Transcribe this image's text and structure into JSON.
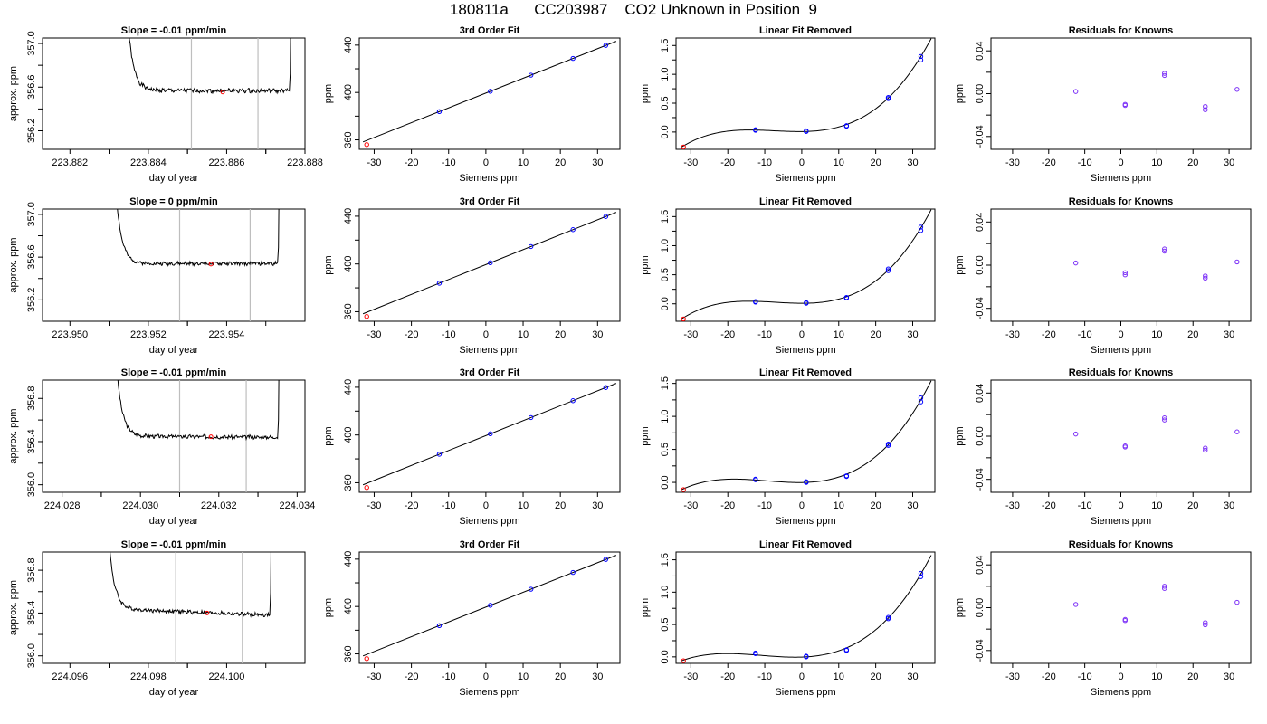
{
  "title": "180811a      CC203987    CO2 Unknown in Position  9",
  "colors": {
    "known": "#0000ff",
    "unknown": "#ff0000",
    "line": "#000000",
    "vline": "#bebebe"
  },
  "labels": {
    "trace_xlabel": "day of year",
    "trace_ylabel": "approx. ppm",
    "fit_title": "3rd Order Fit",
    "fit_ylabel": "ppm",
    "lin_title": "Linear Fit Removed",
    "lin_ylabel": "ppm",
    "res_title": "Residuals for Knowns",
    "res_ylabel": "ppm",
    "siemens_xlabel": "Siemens ppm"
  },
  "chart_data": [
    {
      "type": "line",
      "panel": "trace",
      "row": 1,
      "title": "Slope =  -0.01  ppm/min",
      "xlim": [
        223.8813,
        223.888
      ],
      "ylim": [
        356.03,
        357.05
      ],
      "xticks": [
        223.882,
        223.884,
        223.886,
        223.888
      ],
      "xtick_labels": [
        "223.882",
        "223.884",
        "223.886",
        "223.888"
      ],
      "yticks": [
        356.2,
        356.6,
        357.0
      ],
      "ytick_labels": [
        "356.2",
        "356.6",
        "357.0"
      ],
      "vlines": [
        223.8851,
        223.8868
      ],
      "trace": {
        "x0": 223.8835,
        "x1": 223.8876,
        "base": 356.57,
        "tilt": -0.005,
        "noise": 0.018,
        "rise_top": 357.1,
        "seed": 1
      },
      "unknown": {
        "x": 223.8859,
        "y": 356.555
      }
    },
    {
      "type": "scatter",
      "panel": "fit",
      "row": 1,
      "title": "3rd Order Fit",
      "xlim": [
        -34,
        36
      ],
      "ylim": [
        352,
        446
      ],
      "xticks": [
        -30,
        -20,
        -10,
        0,
        10,
        20,
        30
      ],
      "xtick_labels": [
        "-30",
        "-20",
        "-10",
        "0",
        "10",
        "20",
        "30"
      ],
      "yticks": [
        360,
        400,
        440
      ],
      "ytick_labels": [
        "360",
        "400",
        "440"
      ],
      "known_x": [
        -12.5,
        1.2,
        12.1,
        23.4,
        32.2
      ],
      "unknown": {
        "x": -32,
        "y": 356.0
      }
    },
    {
      "type": "scatter",
      "panel": "linres",
      "row": 1,
      "title": "Linear Fit Removed",
      "xlim": [
        -34,
        36
      ],
      "ylim": [
        -0.3,
        1.63
      ],
      "xticks": [
        -30,
        -20,
        -10,
        0,
        10,
        20,
        30
      ],
      "xtick_labels": [
        "-30",
        "-20",
        "-10",
        "0",
        "10",
        "20",
        "30"
      ],
      "yticks": [
        0.0,
        0.5,
        1.0,
        1.5
      ],
      "ytick_labels": [
        "0.0",
        "0.5",
        "1.0",
        "1.5"
      ],
      "curve_x": [
        -32.5,
        -12.5,
        1.2,
        12.1,
        23.4,
        32.2,
        35
      ],
      "curve_y": [
        -0.26,
        0.03,
        0.01,
        0.1,
        0.59,
        1.3,
        1.62
      ],
      "known_x": [
        -12.5,
        -12.5,
        1.2,
        1.2,
        12.1,
        12.1,
        23.4,
        23.4,
        32.2,
        32.2
      ],
      "known_y": [
        0.04,
        0.03,
        0.01,
        0.02,
        0.1,
        0.11,
        0.58,
        0.6,
        1.25,
        1.31
      ],
      "unknown": {
        "x": -32,
        "y": -0.26
      }
    },
    {
      "type": "scatter",
      "panel": "res",
      "row": 1,
      "title": "Residuals for Knowns",
      "xlim": [
        -36,
        36
      ],
      "ylim": [
        -0.052,
        0.052
      ],
      "xticks": [
        -30,
        -20,
        -10,
        0,
        10,
        20,
        30
      ],
      "xtick_labels": [
        "-30",
        "-20",
        "-10",
        "0",
        "10",
        "20",
        "30"
      ],
      "yticks": [
        -0.04,
        0.0,
        0.04
      ],
      "ytick_labels": [
        "-0.04",
        "0.00",
        "0.04"
      ],
      "known_x": [
        -12.5,
        1.2,
        1.2,
        12.1,
        12.1,
        23.4,
        23.4,
        32.2
      ],
      "known_y": [
        0.002,
        -0.01,
        -0.011,
        0.017,
        0.019,
        -0.012,
        -0.015,
        0.004
      ]
    },
    {
      "type": "line",
      "panel": "trace",
      "row": 2,
      "title": "Slope =  0  ppm/min",
      "xlim": [
        223.9493,
        223.956
      ],
      "ylim": [
        356.0,
        357.05
      ],
      "xticks": [
        223.95,
        223.952,
        223.954
      ],
      "xtick_labels": [
        "223.950",
        "223.952",
        "223.954"
      ],
      "yticks": [
        356.2,
        356.6,
        357.0
      ],
      "ytick_labels": [
        "356.2",
        "356.6",
        "357.0"
      ],
      "vlines": [
        223.9528,
        223.9546
      ],
      "trace": {
        "x0": 223.9512,
        "x1": 223.9553,
        "base": 356.54,
        "tilt": 0.0,
        "noise": 0.015,
        "rise_top": 357.1,
        "seed": 2
      },
      "unknown": {
        "x": 223.9536,
        "y": 356.535
      }
    },
    {
      "type": "scatter",
      "panel": "fit",
      "row": 2,
      "title": "3rd Order Fit",
      "xlim": [
        -34,
        36
      ],
      "ylim": [
        352,
        446
      ],
      "xticks": [
        -30,
        -20,
        -10,
        0,
        10,
        20,
        30
      ],
      "xtick_labels": [
        "-30",
        "-20",
        "-10",
        "0",
        "10",
        "20",
        "30"
      ],
      "yticks": [
        360,
        400,
        440
      ],
      "ytick_labels": [
        "360",
        "400",
        "440"
      ],
      "known_x": [
        -12.5,
        1.2,
        12.1,
        23.4,
        32.2
      ],
      "unknown": {
        "x": -32,
        "y": 356.0
      }
    },
    {
      "type": "scatter",
      "panel": "linres",
      "row": 2,
      "title": "Linear Fit Removed",
      "xlim": [
        -34,
        36
      ],
      "ylim": [
        -0.3,
        1.63
      ],
      "xticks": [
        -30,
        -20,
        -10,
        0,
        10,
        20,
        30
      ],
      "xtick_labels": [
        "-30",
        "-20",
        "-10",
        "0",
        "10",
        "20",
        "30"
      ],
      "yticks": [
        0.0,
        0.5,
        1.0,
        1.5
      ],
      "ytick_labels": [
        "0.0",
        "0.5",
        "1.0",
        "1.5"
      ],
      "curve_x": [
        -32.5,
        -12.5,
        1.2,
        12.1,
        23.4,
        32.2,
        35
      ],
      "curve_y": [
        -0.26,
        0.03,
        0.01,
        0.1,
        0.58,
        1.3,
        1.62
      ],
      "known_x": [
        -12.5,
        -12.5,
        1.2,
        1.2,
        12.1,
        12.1,
        23.4,
        23.4,
        32.2,
        32.2
      ],
      "known_y": [
        0.03,
        0.04,
        0.01,
        0.02,
        0.1,
        0.11,
        0.57,
        0.6,
        1.26,
        1.32
      ],
      "unknown": {
        "x": -32,
        "y": -0.26
      }
    },
    {
      "type": "scatter",
      "panel": "res",
      "row": 2,
      "title": "Residuals for Knowns",
      "xlim": [
        -36,
        36
      ],
      "ylim": [
        -0.052,
        0.052
      ],
      "xticks": [
        -30,
        -20,
        -10,
        0,
        10,
        20,
        30
      ],
      "xtick_labels": [
        "-30",
        "-20",
        "-10",
        "0",
        "10",
        "20",
        "30"
      ],
      "yticks": [
        -0.04,
        0.0,
        0.04
      ],
      "ytick_labels": [
        "-0.04",
        "0.00",
        "0.04"
      ],
      "known_x": [
        -12.5,
        1.2,
        1.2,
        12.1,
        12.1,
        23.4,
        23.4,
        32.2
      ],
      "known_y": [
        0.002,
        -0.007,
        -0.009,
        0.013,
        0.015,
        -0.01,
        -0.012,
        0.003
      ]
    },
    {
      "type": "line",
      "panel": "trace",
      "row": 3,
      "title": "Slope =  -0.01  ppm/min",
      "xlim": [
        224.0275,
        224.0342
      ],
      "ylim": [
        355.93,
        356.97
      ],
      "xticks": [
        224.028,
        224.03,
        224.032,
        224.034
      ],
      "xtick_labels": [
        "224.028",
        "224.030",
        "224.032",
        "224.034"
      ],
      "yticks": [
        356.0,
        356.4,
        356.8
      ],
      "ytick_labels": [
        "356.0",
        "356.4",
        "356.8"
      ],
      "vlines": [
        224.031,
        224.0327
      ],
      "trace": {
        "x0": 224.0294,
        "x1": 224.0335,
        "base": 356.45,
        "tilt": -0.01,
        "noise": 0.016,
        "rise_top": 357.05,
        "seed": 3
      },
      "unknown": {
        "x": 224.0318,
        "y": 356.445
      }
    },
    {
      "type": "scatter",
      "panel": "fit",
      "row": 3,
      "title": "3rd Order Fit",
      "xlim": [
        -34,
        36
      ],
      "ylim": [
        352,
        446
      ],
      "xticks": [
        -30,
        -20,
        -10,
        0,
        10,
        20,
        30
      ],
      "xtick_labels": [
        "-30",
        "-20",
        "-10",
        "0",
        "10",
        "20",
        "30"
      ],
      "yticks": [
        360,
        400,
        440
      ],
      "ytick_labels": [
        "360",
        "400",
        "440"
      ],
      "known_x": [
        -12.5,
        1.2,
        12.1,
        23.4,
        32.2
      ],
      "unknown": {
        "x": -32,
        "y": 356.0
      }
    },
    {
      "type": "scatter",
      "panel": "linres",
      "row": 3,
      "title": "Linear Fit Removed",
      "xlim": [
        -34,
        36
      ],
      "ylim": [
        -0.15,
        1.55
      ],
      "xticks": [
        -30,
        -20,
        -10,
        0,
        10,
        20,
        30
      ],
      "xtick_labels": [
        "-30",
        "-20",
        "-10",
        "0",
        "10",
        "20",
        "30"
      ],
      "yticks": [
        0.0,
        0.5,
        1.0,
        1.5
      ],
      "ytick_labels": [
        "0.0",
        "0.5",
        "1.0",
        "1.5"
      ],
      "curve_x": [
        -32.5,
        -12.5,
        1.2,
        12.1,
        23.4,
        32.2,
        35
      ],
      "curve_y": [
        -0.11,
        0.04,
        0.0,
        0.09,
        0.57,
        1.26,
        1.54
      ],
      "known_x": [
        -12.5,
        -12.5,
        1.2,
        1.2,
        12.1,
        12.1,
        23.4,
        23.4,
        32.2,
        32.2
      ],
      "known_y": [
        0.05,
        0.04,
        0.0,
        0.01,
        0.1,
        0.09,
        0.56,
        0.58,
        1.22,
        1.28
      ],
      "unknown": {
        "x": -32,
        "y": -0.11
      }
    },
    {
      "type": "scatter",
      "panel": "res",
      "row": 3,
      "title": "Residuals for Knowns",
      "xlim": [
        -36,
        36
      ],
      "ylim": [
        -0.052,
        0.052
      ],
      "xticks": [
        -30,
        -20,
        -10,
        0,
        10,
        20,
        30
      ],
      "xtick_labels": [
        "-30",
        "-20",
        "-10",
        "0",
        "10",
        "20",
        "30"
      ],
      "yticks": [
        -0.04,
        0.0,
        0.04
      ],
      "ytick_labels": [
        "-0.04",
        "0.00",
        "0.04"
      ],
      "known_x": [
        -12.5,
        1.2,
        1.2,
        12.1,
        12.1,
        23.4,
        23.4,
        32.2
      ],
      "known_y": [
        0.002,
        -0.009,
        -0.01,
        0.015,
        0.017,
        -0.011,
        -0.013,
        0.004
      ]
    },
    {
      "type": "line",
      "panel": "trace",
      "row": 4,
      "title": "Slope =  -0.01  ppm/min",
      "xlim": [
        224.0953,
        224.102
      ],
      "ylim": [
        355.93,
        356.97
      ],
      "xticks": [
        224.096,
        224.098,
        224.1
      ],
      "xtick_labels": [
        "224.096",
        "224.098",
        "224.100"
      ],
      "yticks": [
        356.0,
        356.4,
        356.8
      ],
      "ytick_labels": [
        "356.0",
        "356.4",
        "356.8"
      ],
      "vlines": [
        224.0987,
        224.1004
      ],
      "trace": {
        "x0": 224.097,
        "x1": 224.1011,
        "base": 356.44,
        "tilt": -0.06,
        "noise": 0.016,
        "rise_top": 357.05,
        "seed": 4
      },
      "unknown": {
        "x": 224.0995,
        "y": 356.4
      }
    },
    {
      "type": "scatter",
      "panel": "fit",
      "row": 4,
      "title": "3rd Order Fit",
      "xlim": [
        -34,
        36
      ],
      "ylim": [
        352,
        446
      ],
      "xticks": [
        -30,
        -20,
        -10,
        0,
        10,
        20,
        30
      ],
      "xtick_labels": [
        "-30",
        "-20",
        "-10",
        "0",
        "10",
        "20",
        "30"
      ],
      "yticks": [
        360,
        400,
        440
      ],
      "ytick_labels": [
        "360",
        "400",
        "440"
      ],
      "known_x": [
        -12.5,
        1.2,
        12.1,
        23.4,
        32.2
      ],
      "unknown": {
        "x": -32,
        "y": 356.0
      }
    },
    {
      "type": "scatter",
      "panel": "linres",
      "row": 4,
      "title": "Linear Fit Removed",
      "xlim": [
        -34,
        36
      ],
      "ylim": [
        -0.1,
        1.62
      ],
      "xticks": [
        -30,
        -20,
        -10,
        0,
        10,
        20,
        30
      ],
      "xtick_labels": [
        "-30",
        "-20",
        "-10",
        "0",
        "10",
        "20",
        "30"
      ],
      "yticks": [
        0.0,
        0.5,
        1.0,
        1.5
      ],
      "ytick_labels": [
        "0.0",
        "0.5",
        "1.0",
        "1.5"
      ],
      "curve_x": [
        -32.5,
        -12.5,
        1.2,
        12.1,
        23.4,
        32.2,
        35
      ],
      "curve_y": [
        -0.06,
        0.05,
        0.0,
        0.1,
        0.6,
        1.28,
        1.57
      ],
      "known_x": [
        -12.5,
        -12.5,
        1.2,
        1.2,
        12.1,
        12.1,
        23.4,
        23.4,
        32.2,
        32.2
      ],
      "known_y": [
        0.05,
        0.06,
        0.0,
        0.01,
        0.1,
        0.11,
        0.59,
        0.61,
        1.24,
        1.29
      ],
      "unknown": {
        "x": -32,
        "y": -0.06
      }
    },
    {
      "type": "scatter",
      "panel": "res",
      "row": 4,
      "title": "Residuals for Knowns",
      "xlim": [
        -36,
        36
      ],
      "ylim": [
        -0.052,
        0.052
      ],
      "xticks": [
        -30,
        -20,
        -10,
        0,
        10,
        20,
        30
      ],
      "xtick_labels": [
        "-30",
        "-20",
        "-10",
        "0",
        "10",
        "20",
        "30"
      ],
      "yticks": [
        -0.04,
        0.0,
        0.04
      ],
      "ytick_labels": [
        "-0.04",
        "0.00",
        "0.04"
      ],
      "known_x": [
        -12.5,
        1.2,
        1.2,
        12.1,
        12.1,
        23.4,
        23.4,
        32.2
      ],
      "known_y": [
        0.003,
        -0.011,
        -0.012,
        0.018,
        0.02,
        -0.014,
        -0.016,
        0.005
      ]
    }
  ]
}
